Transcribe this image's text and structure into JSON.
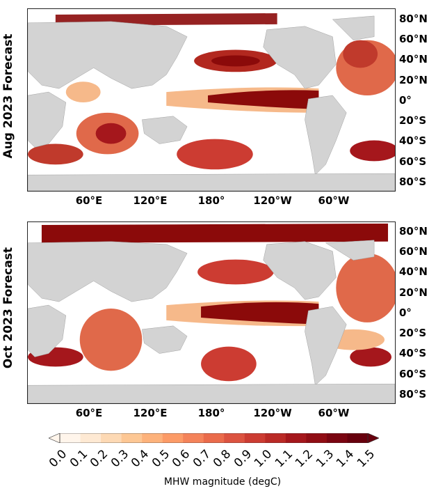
{
  "panels": [
    {
      "id": "aug",
      "row_label": "Aug 2023 Forecast"
    },
    {
      "id": "oct",
      "row_label": "Oct 2023 Forecast"
    }
  ],
  "latitude_labels": [
    "80°N",
    "60°N",
    "40°N",
    "20°N",
    "0°",
    "20°S",
    "40°S",
    "60°S",
    "80°S"
  ],
  "longitude_labels": [
    "60°E",
    "120°E",
    "180°",
    "120°W",
    "60°W"
  ],
  "colorbar": {
    "label": "MHW magnitude (degC)",
    "ticks": [
      "0.0",
      "0.1",
      "0.2",
      "0.3",
      "0.4",
      "0.5",
      "0.6",
      "0.7",
      "0.8",
      "0.9",
      "1.0",
      "1.1",
      "1.2",
      "1.3",
      "1.4",
      "1.5"
    ],
    "colors": [
      "#fff5eb",
      "#fee9d3",
      "#fdd9b4",
      "#fdc794",
      "#fdb27b",
      "#fc9b67",
      "#f4835a",
      "#ea6b4b",
      "#dc5340",
      "#cc3c32",
      "#ba2a26",
      "#a5171c",
      "#900d14",
      "#7a0511",
      "#67000d"
    ]
  },
  "colors": {
    "land": "#d3d3d3",
    "ocean": "#ffffff",
    "strong": "#8b0a0a",
    "mid": "#e0694a",
    "light": "#f6b98a"
  }
}
